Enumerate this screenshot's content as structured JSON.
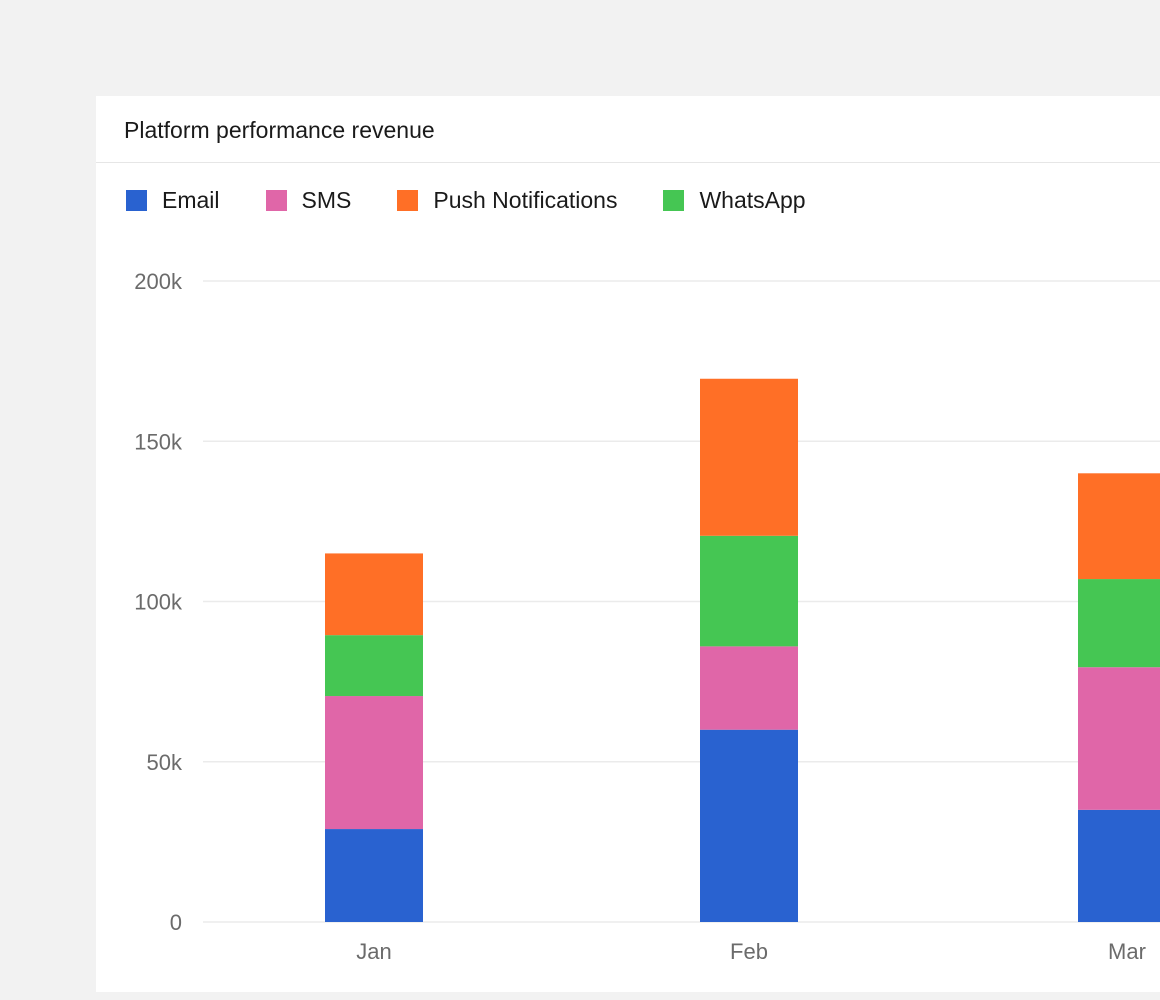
{
  "card": {
    "title": "Platform performance revenue"
  },
  "legend": [
    {
      "label": "Email",
      "color": "#2962d0"
    },
    {
      "label": "SMS",
      "color": "#e066a8"
    },
    {
      "label": "Push Notifications",
      "color": "#ff6f26"
    },
    {
      "label": "WhatsApp",
      "color": "#45c653"
    }
  ],
  "chart_data": {
    "type": "bar",
    "stacked": true,
    "categories": [
      "Jan",
      "Feb",
      "Mar"
    ],
    "series": [
      {
        "name": "Email",
        "color": "#2962d0",
        "values": [
          29000,
          60000,
          35000
        ]
      },
      {
        "name": "SMS",
        "color": "#e066a8",
        "values": [
          41500,
          26000,
          44500
        ]
      },
      {
        "name": "WhatsApp",
        "color": "#45c653",
        "values": [
          19000,
          34500,
          27500
        ]
      },
      {
        "name": "Push Notifications",
        "color": "#ff6f26",
        "values": [
          25500,
          49000,
          33000
        ]
      }
    ],
    "ylim": [
      0,
      200000
    ],
    "yticks": [
      0,
      50000,
      100000,
      150000,
      200000
    ],
    "ytick_labels": [
      "0",
      "50k",
      "100k",
      "150k",
      "200k"
    ],
    "grid": true,
    "legend_position": "top-left"
  }
}
